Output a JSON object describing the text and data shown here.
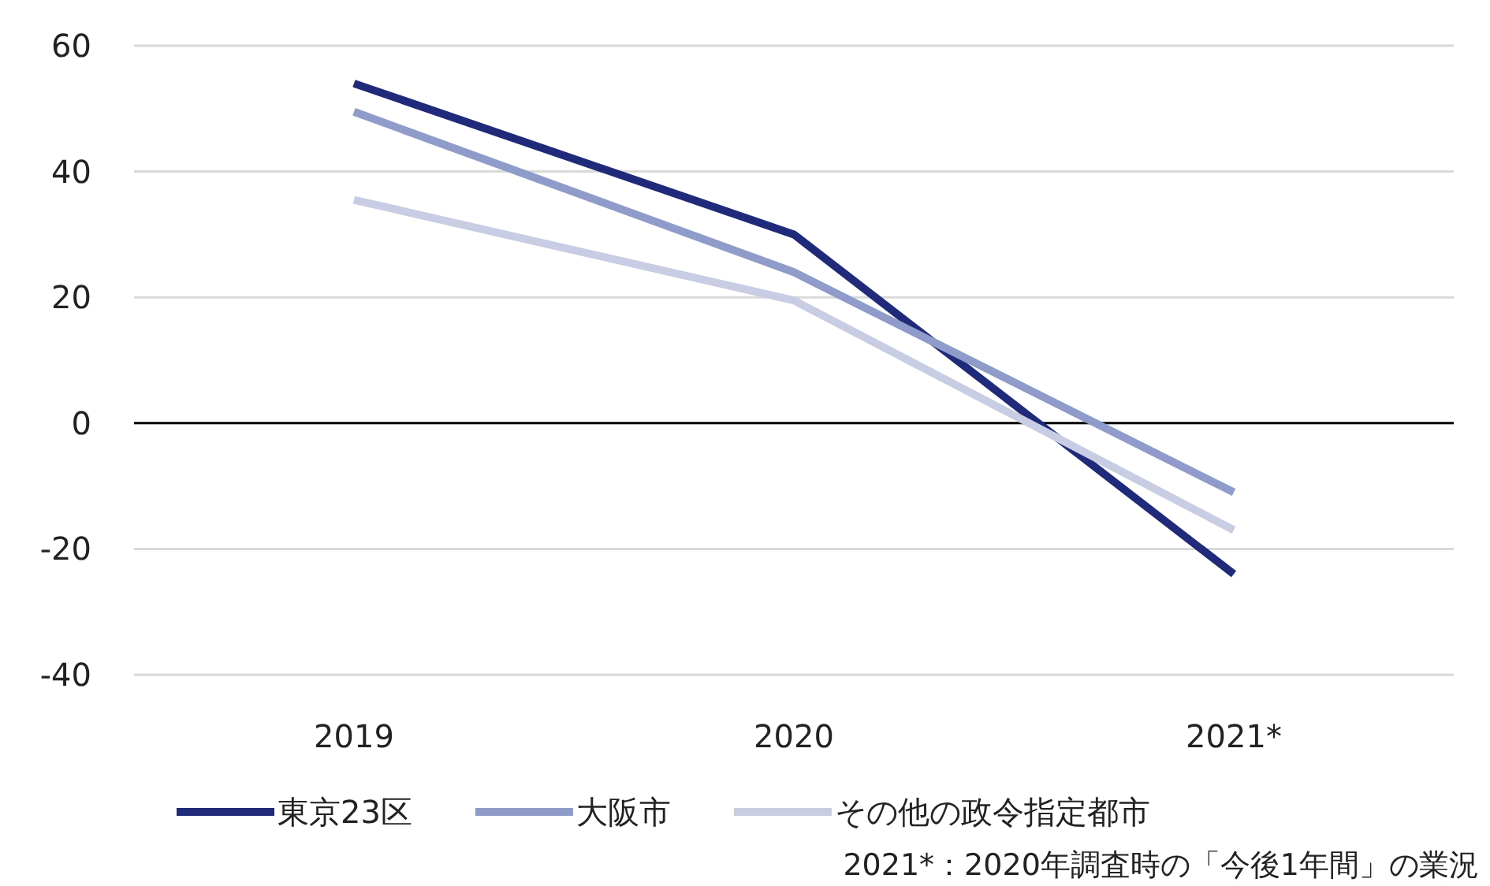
{
  "chart_data": {
    "type": "line",
    "categories": [
      "2019",
      "2020",
      "2021*"
    ],
    "series": [
      {
        "name": "東京23区",
        "color": "#1f2a7a",
        "values": [
          54,
          30,
          -24
        ]
      },
      {
        "name": "大阪市",
        "color": "#8f9bc9",
        "values": [
          49.5,
          24,
          -11
        ]
      },
      {
        "name": "その他の政令指定都市",
        "color": "#c8cde4",
        "values": [
          35.5,
          19.5,
          -17
        ]
      }
    ],
    "ylim": [
      -40,
      60
    ],
    "yticks": [
      -40,
      -20,
      0,
      20,
      40,
      60
    ],
    "grid": "y",
    "legend": "bottom",
    "ref_lines": [
      {
        "axis": "y",
        "value": 0,
        "color": "#000000"
      }
    ],
    "annotations": [
      "2021*：2020年調査時の「今後1年間」の業況"
    ]
  }
}
